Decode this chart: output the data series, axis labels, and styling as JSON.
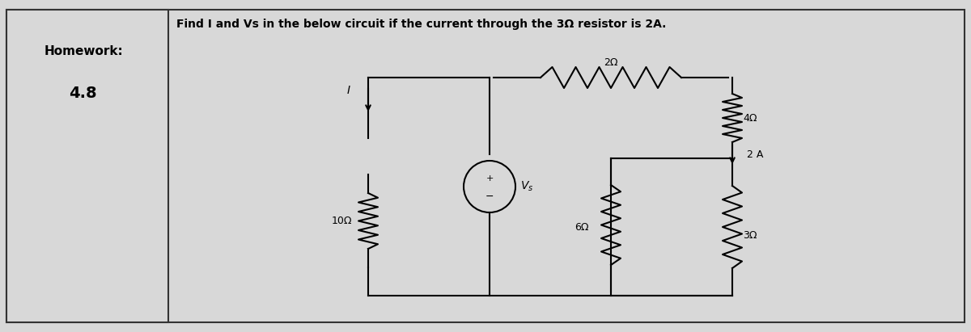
{
  "bg_color": "#d8d8d8",
  "outer_box_color": "#333333",
  "inner_box_color": "#333333",
  "wire_color": "#000000",
  "text_color": "#000000",
  "title_text": "Homework:",
  "subtitle_text": "4.8",
  "problem_text": "Find I and Vs in the below circuit if the current through the 3Ω resistor is 2A.",
  "fig_width": 12.0,
  "fig_height": 4.11
}
